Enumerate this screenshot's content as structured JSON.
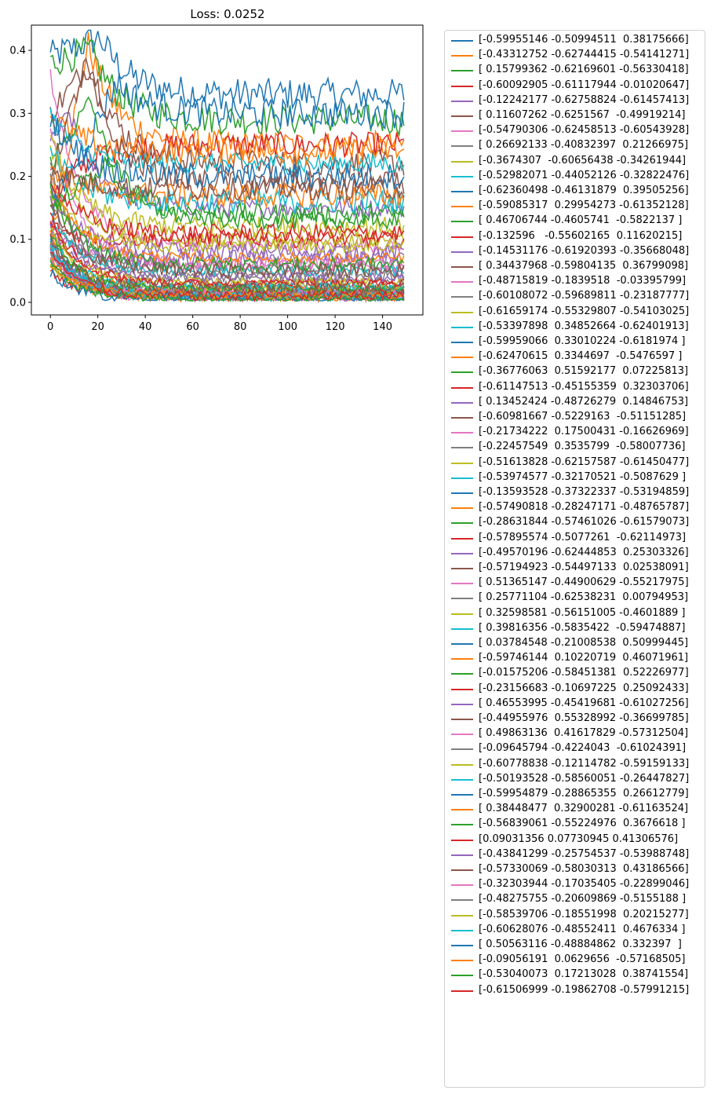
{
  "chart_data": {
    "type": "line",
    "title": "Loss: 0.0252",
    "xlabel": "",
    "ylabel": "",
    "xlim": [
      -8,
      157
    ],
    "ylim": [
      -0.02,
      0.44
    ],
    "xticks": [
      0,
      20,
      40,
      60,
      80,
      100,
      120,
      140
    ],
    "yticks": [
      0.0,
      0.1,
      0.2,
      0.3,
      0.4
    ],
    "ytick_labels": [
      "0.0",
      "0.1",
      "0.2",
      "0.3",
      "0.4"
    ],
    "grid": false,
    "legend_position": "outside-right",
    "n_points": 150,
    "palette": [
      "#1f77b4",
      "#ff7f0e",
      "#2ca02c",
      "#d62728",
      "#9467bd",
      "#8c564b",
      "#e377c2",
      "#7f7f7f",
      "#bcbd22",
      "#17becf"
    ],
    "series": [
      {
        "name": "[-0.59955146 -0.50994511  0.38175666]",
        "start": 0.39,
        "peak": 0.42,
        "end": 0.33
      },
      {
        "name": "[-0.43312752 -0.62744415 -0.54141271]",
        "start": 0.1,
        "peak": 0.41,
        "end": 0.25
      },
      {
        "name": "[ 0.15799362 -0.62169601 -0.56330418]",
        "start": 0.38,
        "peak": 0.4,
        "end": 0.29
      },
      {
        "name": "[-0.60092905 -0.61117944 -0.01020647]",
        "start": 0.15,
        "peak": 0.15,
        "end": 0.25
      },
      {
        "name": "[-0.12242177 -0.62758824 -0.61457413]",
        "start": 0.25,
        "peak": 0.3,
        "end": 0.15
      },
      {
        "name": "[ 0.11607262 -0.6251567  -0.49919214]",
        "start": 0.3,
        "peak": 0.38,
        "end": 0.22
      },
      {
        "name": "[-0.54790306 -0.62458513 -0.60543928]",
        "start": 0.36,
        "peak": 0.36,
        "end": 0.09
      },
      {
        "name": "[ 0.26692133 -0.40832397  0.21266975]",
        "start": 0.2,
        "peak": 0.2,
        "end": 0.05
      },
      {
        "name": "[-0.3674307  -0.60656438 -0.34261944]",
        "start": 0.25,
        "peak": 0.25,
        "end": 0.1
      },
      {
        "name": "[-0.52982071 -0.44052126 -0.32822476]",
        "start": 0.3,
        "peak": 0.3,
        "end": 0.22
      },
      {
        "name": "[-0.62360498 -0.46131879  0.39505256]",
        "start": 0.14,
        "peak": 0.35,
        "end": 0.3
      },
      {
        "name": "[-0.59085317  0.29954273 -0.61352128]",
        "start": 0.3,
        "peak": 0.3,
        "end": 0.24
      },
      {
        "name": "[ 0.46706744 -0.4605741  -0.5822137 ]",
        "start": 0.22,
        "peak": 0.32,
        "end": 0.14
      },
      {
        "name": "[-0.132596   -0.55602165  0.11620215]",
        "start": 0.12,
        "peak": 0.12,
        "end": 0.1
      },
      {
        "name": "[-0.14531176 -0.61920393 -0.35668048]",
        "start": 0.18,
        "peak": 0.18,
        "end": 0.08
      },
      {
        "name": "[ 0.34437968 -0.59804135  0.36799098]",
        "start": 0.2,
        "peak": 0.38,
        "end": 0.19
      },
      {
        "name": "[-0.48715819 -0.1839518  -0.03395799]",
        "start": 0.28,
        "peak": 0.28,
        "end": 0.06
      },
      {
        "name": "[-0.60108072 -0.59689811 -0.23187777]",
        "start": 0.22,
        "peak": 0.22,
        "end": 0.03
      },
      {
        "name": "[-0.61659174 -0.55329807 -0.54103025]",
        "start": 0.26,
        "peak": 0.26,
        "end": 0.12
      },
      {
        "name": "[-0.53397898  0.34852664 -0.62401913]",
        "start": 0.24,
        "peak": 0.24,
        "end": 0.16
      },
      {
        "name": "[-0.59959066  0.33010224 -0.6181974 ]",
        "start": 0.3,
        "peak": 0.3,
        "end": 0.2
      },
      {
        "name": "[-0.62470615  0.3344697  -0.5476597 ]",
        "start": 0.22,
        "peak": 0.22,
        "end": 0.17
      },
      {
        "name": "[-0.36776063  0.51592177  0.07225813]",
        "start": 0.15,
        "peak": 0.22,
        "end": 0.13
      },
      {
        "name": "[-0.61147513 -0.45155359  0.32303706]",
        "start": 0.2,
        "peak": 0.2,
        "end": 0.11
      },
      {
        "name": "[ 0.13452424 -0.48726279  0.14846753]",
        "start": 0.1,
        "peak": 0.1,
        "end": 0.07
      },
      {
        "name": "[-0.60981667 -0.5229163  -0.51151285]",
        "start": 0.22,
        "peak": 0.22,
        "end": 0.18
      },
      {
        "name": "[-0.21734222  0.17500431 -0.16626969]",
        "start": 0.12,
        "peak": 0.12,
        "end": 0.06
      },
      {
        "name": "[-0.22457549  0.3535799  -0.58007736]",
        "start": 0.16,
        "peak": 0.16,
        "end": 0.04
      },
      {
        "name": "[-0.51613828 -0.62157587 -0.61450477]",
        "start": 0.18,
        "peak": 0.18,
        "end": 0.09
      },
      {
        "name": "[-0.53974577 -0.32170521 -0.5087629 ]",
        "start": 0.14,
        "peak": 0.14,
        "end": 0.05
      },
      {
        "name": "[-0.13593528 -0.37322337 -0.53194859]",
        "start": 0.1,
        "peak": 0.1,
        "end": 0.02
      },
      {
        "name": "[-0.57490818 -0.28247171 -0.48765787]",
        "start": 0.2,
        "peak": 0.2,
        "end": 0.07
      },
      {
        "name": "[-0.28631844 -0.57461026 -0.61579073]",
        "start": 0.18,
        "peak": 0.18,
        "end": 0.06
      },
      {
        "name": "[-0.57895574 -0.5077261  -0.62114973]",
        "start": 0.14,
        "peak": 0.14,
        "end": 0.03
      },
      {
        "name": "[-0.49570196 -0.62444853  0.25303326]",
        "start": 0.12,
        "peak": 0.12,
        "end": 0.04
      },
      {
        "name": "[-0.57194923 -0.54497133  0.02538091]",
        "start": 0.16,
        "peak": 0.16,
        "end": 0.05
      },
      {
        "name": "[ 0.51365147 -0.44900629 -0.55217975]",
        "start": 0.08,
        "peak": 0.08,
        "end": 0.02
      },
      {
        "name": "[ 0.25771104 -0.62538231  0.00794953]",
        "start": 0.1,
        "peak": 0.1,
        "end": 0.01
      },
      {
        "name": "[ 0.32598581 -0.56151005 -0.4601889 ]",
        "start": 0.12,
        "peak": 0.12,
        "end": 0.03
      },
      {
        "name": "[ 0.39816356 -0.5835422  -0.59474887]",
        "start": 0.09,
        "peak": 0.09,
        "end": 0.02
      },
      {
        "name": "[ 0.03784548 -0.21008538  0.50999445]",
        "start": 0.07,
        "peak": 0.07,
        "end": 0.01
      },
      {
        "name": "[-0.59746144  0.10220719  0.46071961]",
        "start": 0.11,
        "peak": 0.11,
        "end": 0.02
      },
      {
        "name": "[-0.01575206 -0.58451381  0.52226977]",
        "start": 0.06,
        "peak": 0.06,
        "end": 0.01
      },
      {
        "name": "[-0.23156683 -0.10697225  0.25092433]",
        "start": 0.13,
        "peak": 0.13,
        "end": 0.03
      },
      {
        "name": "[ 0.46553995 -0.45419681 -0.61027256]",
        "start": 0.09,
        "peak": 0.09,
        "end": 0.01
      },
      {
        "name": "[-0.44955976  0.55328992 -0.36699785]",
        "start": 0.1,
        "peak": 0.1,
        "end": 0.02
      },
      {
        "name": "[ 0.49863136  0.41617829 -0.57312504]",
        "start": 0.07,
        "peak": 0.07,
        "end": 0.01
      },
      {
        "name": "[-0.09645794 -0.4224043  -0.61024391]",
        "start": 0.08,
        "peak": 0.08,
        "end": 0.01
      },
      {
        "name": "[-0.60778838 -0.12114782 -0.59159133]",
        "start": 0.12,
        "peak": 0.12,
        "end": 0.02
      },
      {
        "name": "[-0.50193528 -0.58560051 -0.26447827]",
        "start": 0.1,
        "peak": 0.1,
        "end": 0.02
      },
      {
        "name": "[-0.59954879 -0.28865355  0.26612779]",
        "start": 0.08,
        "peak": 0.08,
        "end": 0.01
      },
      {
        "name": "[ 0.38448477  0.32900281 -0.61163524]",
        "start": 0.06,
        "peak": 0.06,
        "end": 0.01
      },
      {
        "name": "[-0.56839061 -0.55224976  0.3676618 ]",
        "start": 0.11,
        "peak": 0.11,
        "end": 0.02
      },
      {
        "name": "[0.09031356 0.07730945 0.41306576]",
        "start": 0.05,
        "peak": 0.05,
        "end": 0.01
      },
      {
        "name": "[-0.43841299 -0.25754537 -0.53988748]",
        "start": 0.09,
        "peak": 0.09,
        "end": 0.01
      },
      {
        "name": "[-0.57330069 -0.58030313  0.43186566]",
        "start": 0.1,
        "peak": 0.1,
        "end": 0.02
      },
      {
        "name": "[-0.32303944 -0.17035405 -0.22899046]",
        "start": 0.07,
        "peak": 0.07,
        "end": 0.01
      },
      {
        "name": "[-0.48275755 -0.20609869 -0.5155188 ]",
        "start": 0.08,
        "peak": 0.08,
        "end": 0.01
      },
      {
        "name": "[-0.58539706 -0.18551998  0.20215277]",
        "start": 0.06,
        "peak": 0.06,
        "end": 0.01
      },
      {
        "name": "[-0.60628076 -0.48552411  0.4676334 ]",
        "start": 0.09,
        "peak": 0.09,
        "end": 0.01
      },
      {
        "name": "[ 0.50563116 -0.48884862  0.332397  ]",
        "start": 0.05,
        "peak": 0.05,
        "end": 0.005
      },
      {
        "name": "[-0.09056191  0.0629656  -0.57168505]",
        "start": 0.07,
        "peak": 0.07,
        "end": 0.01
      },
      {
        "name": "[-0.53040073  0.17213028  0.38741554]",
        "start": 0.06,
        "peak": 0.06,
        "end": 0.005
      },
      {
        "name": "[-0.61506999 -0.19862708 -0.57991215]",
        "start": 0.08,
        "peak": 0.08,
        "end": 0.01
      }
    ]
  }
}
